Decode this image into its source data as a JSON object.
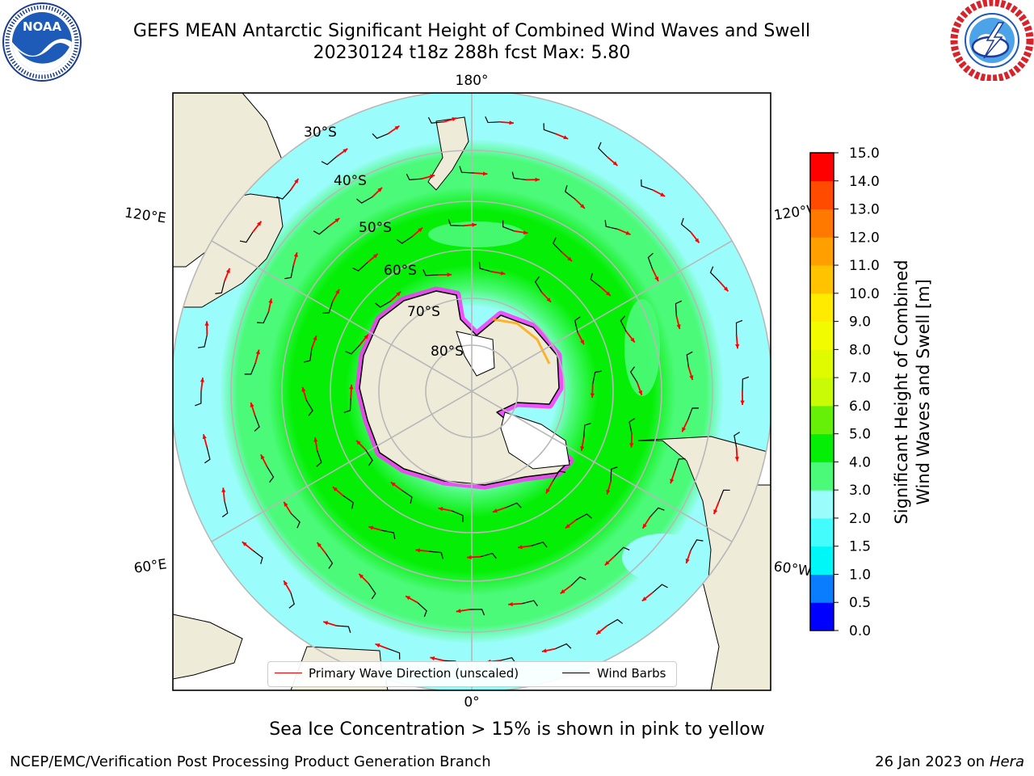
{
  "title_line1": "GEFS MEAN Antarctic Significant Height of Combined Wind Waves and Swell",
  "title_line2": "20230124 t18z 288h fcst   Max: 5.80",
  "logos": {
    "left": {
      "name": "noaa-logo",
      "text": "NOAA",
      "ring_text": "NATIONAL OCEANIC AND ATMOSPHERIC ADMINISTRATION · U.S. DEPARTMENT OF COMMERCE"
    },
    "right": {
      "name": "nws-logo",
      "ring_text": "NATIONAL WEATHER SERVICE"
    }
  },
  "map": {
    "longitude_labels": {
      "top": "180°",
      "bottom": "0°",
      "upper_left": "120°E",
      "lower_left": "60°E",
      "upper_right": "120°W",
      "lower_right": "60°W"
    },
    "latitude_labels": [
      "30°S",
      "40°S",
      "50°S",
      "60°S",
      "70°S",
      "80°S"
    ],
    "colors": {
      "land": "#efebd9",
      "ocean_calm": "#9bfdfb",
      "ocean_moderate": "#4cfa7a",
      "ocean_rough": "#04ef05",
      "sea_ice_edge": "#ff33ff",
      "arrow": "#ff0000",
      "barb": "#000000",
      "graticule": "#b8b8b8"
    }
  },
  "legend": {
    "wave_label": "Primary Wave Direction (unscaled)",
    "barb_label": "Wind Barbs",
    "wave_color": "#ff0000",
    "barb_color": "#000000"
  },
  "colorbar": {
    "title_line1": "Significant Height of Combined",
    "title_line2": "Wind Waves and Swell [m]",
    "ticks": [
      "15.0",
      "14.0",
      "13.0",
      "12.0",
      "11.0",
      "10.0",
      "9.0",
      "8.0",
      "7.0",
      "6.0",
      "5.0",
      "4.0",
      "3.0",
      "2.0",
      "1.5",
      "1.0",
      "0.5",
      "0.0"
    ],
    "bins": [
      {
        "from": 0.0,
        "to": 0.5,
        "color": "#0000ff"
      },
      {
        "from": 0.5,
        "to": 1.0,
        "color": "#0a7dff"
      },
      {
        "from": 1.0,
        "to": 1.5,
        "color": "#00f7f7"
      },
      {
        "from": 1.5,
        "to": 2.0,
        "color": "#45fcfc"
      },
      {
        "from": 2.0,
        "to": 3.0,
        "color": "#9bfdfb"
      },
      {
        "from": 3.0,
        "to": 4.0,
        "color": "#4cfa7a"
      },
      {
        "from": 4.0,
        "to": 5.0,
        "color": "#04ef05"
      },
      {
        "from": 5.0,
        "to": 6.0,
        "color": "#66f008"
      },
      {
        "from": 6.0,
        "to": 7.0,
        "color": "#c8fb05"
      },
      {
        "from": 7.0,
        "to": 8.0,
        "color": "#e0fb00"
      },
      {
        "from": 8.0,
        "to": 9.0,
        "color": "#f3fb00"
      },
      {
        "from": 9.0,
        "to": 10.0,
        "color": "#ffeb00"
      },
      {
        "from": 10.0,
        "to": 11.0,
        "color": "#ffc300"
      },
      {
        "from": 11.0,
        "to": 12.0,
        "color": "#ffa000"
      },
      {
        "from": 12.0,
        "to": 13.0,
        "color": "#ff7800"
      },
      {
        "from": 13.0,
        "to": 14.0,
        "color": "#ff4b00"
      },
      {
        "from": 14.0,
        "to": 15.0,
        "color": "#ff0000"
      }
    ]
  },
  "caption": "Sea Ice Concentration > 15% is shown in pink to yellow",
  "footer_left": "NCEP/EMC/Verification Post Processing Product Generation Branch",
  "footer_right_date": "26 Jan 2023 on ",
  "footer_right_host": "Hera"
}
